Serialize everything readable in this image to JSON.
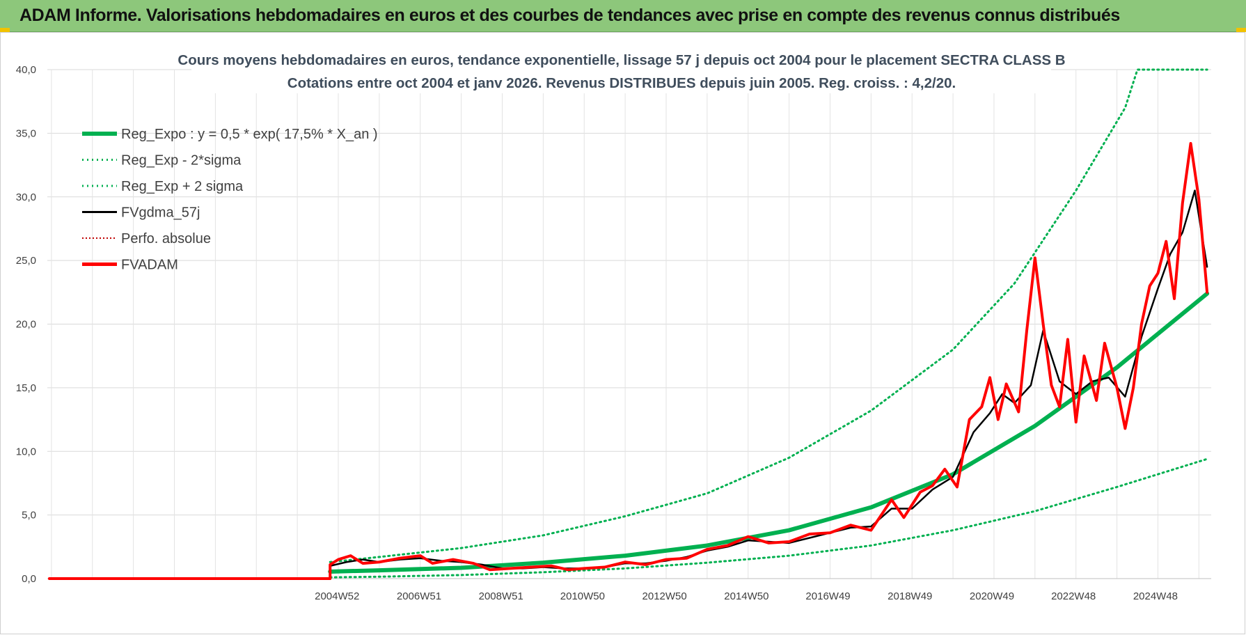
{
  "header": {
    "title": "ADAM Informe. Valorisations hebdomadaires en euros et des courbes de tendances avec prise en compte des revenus connus distribués"
  },
  "colors": {
    "header_bg": "#8dc77b",
    "reg_expo": "#00b050",
    "fvgdma": "#000000",
    "fvadam": "#ff0000",
    "perfo": "#c00000",
    "accent": "#f2c200"
  },
  "chart_data": {
    "type": "line",
    "title": [
      "Cours moyens hebdomadaires en euros, tendance exponentielle, lissage 57 j depuis oct 2004 pour le placement SECTRA CLASS B",
      "Cotations entre oct 2004 et janv 2026. Revenus DISTRIBUES depuis juin 2005. Reg. croiss. : 4,2/20."
    ],
    "ylim": [
      0,
      40
    ],
    "yticks": [
      "0,0",
      "5,0",
      "10,0",
      "15,0",
      "20,0",
      "25,0",
      "30,0",
      "35,0",
      "40,0"
    ],
    "xlabels": [
      {
        "label": "2004W52",
        "t": 2004.97
      },
      {
        "label": "2006W51",
        "t": 2006.97
      },
      {
        "label": "2008W51",
        "t": 2008.97
      },
      {
        "label": "2010W50",
        "t": 2010.96
      },
      {
        "label": "2012W50",
        "t": 2012.96
      },
      {
        "label": "2014W50",
        "t": 2014.96
      },
      {
        "label": "2016W49",
        "t": 2016.95
      },
      {
        "label": "2018W49",
        "t": 2018.95
      },
      {
        "label": "2020W49",
        "t": 2020.95
      },
      {
        "label": "2022W48",
        "t": 2022.94
      },
      {
        "label": "2024W48",
        "t": 2024.94
      }
    ],
    "xlim": [
      1997.9,
      2026.3
    ],
    "data_start": 2004.8,
    "legend": [
      {
        "name": "Reg_Expo : y = 0,5 * exp( 17,5% *  X_an )",
        "style": "thick",
        "color": "#00b050"
      },
      {
        "name": "Reg_Exp - 2*sigma",
        "style": "dotted",
        "color": "#00b050"
      },
      {
        "name": "Reg_Exp + 2 sigma",
        "style": "dotted",
        "color": "#00b050"
      },
      {
        "name": "FVgdma_57j",
        "style": "solid",
        "color": "#000000"
      },
      {
        "name": "Perfo. absolue",
        "style": "dotted",
        "color": "#c00000"
      },
      {
        "name": "FVADAM",
        "style": "thickred",
        "color": "#ff0000"
      }
    ],
    "series": [
      {
        "name": "Reg_Expo",
        "points": [
          [
            2004.8,
            0.55
          ],
          [
            2006,
            0.65
          ],
          [
            2008,
            0.85
          ],
          [
            2010,
            1.25
          ],
          [
            2012,
            1.8
          ],
          [
            2014,
            2.6
          ],
          [
            2016,
            3.8
          ],
          [
            2018,
            5.6
          ],
          [
            2020,
            8.2
          ],
          [
            2022,
            12.0
          ],
          [
            2024,
            16.6
          ],
          [
            2026.2,
            22.4
          ]
        ]
      },
      {
        "name": "Reg_Exp - 2*sigma",
        "points": [
          [
            2004.8,
            0.1
          ],
          [
            2006,
            0.15
          ],
          [
            2008,
            0.28
          ],
          [
            2010,
            0.5
          ],
          [
            2012,
            0.8
          ],
          [
            2014,
            1.25
          ],
          [
            2016,
            1.8
          ],
          [
            2018,
            2.6
          ],
          [
            2020,
            3.8
          ],
          [
            2022,
            5.3
          ],
          [
            2024,
            7.2
          ],
          [
            2026.2,
            9.4
          ]
        ]
      },
      {
        "name": "Reg_Exp + 2 sigma",
        "points": [
          [
            2004.8,
            1.3
          ],
          [
            2006,
            1.7
          ],
          [
            2008,
            2.4
          ],
          [
            2010,
            3.4
          ],
          [
            2012,
            4.9
          ],
          [
            2014,
            6.7
          ],
          [
            2016,
            9.5
          ],
          [
            2018,
            13.2
          ],
          [
            2020,
            18.0
          ],
          [
            2021.5,
            23.2
          ],
          [
            2023,
            30.5
          ],
          [
            2024.2,
            37.0
          ],
          [
            2024.5,
            40
          ],
          [
            2026.2,
            40
          ]
        ]
      },
      {
        "name": "FVgdma_57j",
        "points": [
          [
            2004.8,
            1.0
          ],
          [
            2005.2,
            1.3
          ],
          [
            2005.6,
            1.5
          ],
          [
            2006,
            1.3
          ],
          [
            2006.5,
            1.5
          ],
          [
            2007,
            1.6
          ],
          [
            2007.5,
            1.4
          ],
          [
            2008,
            1.3
          ],
          [
            2008.5,
            1.1
          ],
          [
            2009,
            0.8
          ],
          [
            2009.5,
            0.8
          ],
          [
            2010,
            0.9
          ],
          [
            2010.5,
            0.8
          ],
          [
            2011,
            0.8
          ],
          [
            2011.5,
            0.9
          ],
          [
            2012,
            1.2
          ],
          [
            2012.5,
            1.2
          ],
          [
            2013,
            1.4
          ],
          [
            2013.5,
            1.7
          ],
          [
            2014,
            2.2
          ],
          [
            2014.5,
            2.5
          ],
          [
            2015,
            3.0
          ],
          [
            2015.5,
            2.9
          ],
          [
            2016,
            2.8
          ],
          [
            2016.5,
            3.2
          ],
          [
            2017,
            3.6
          ],
          [
            2017.5,
            4.0
          ],
          [
            2018,
            4.1
          ],
          [
            2018.5,
            5.5
          ],
          [
            2019,
            5.5
          ],
          [
            2019.5,
            7.0
          ],
          [
            2020,
            8.0
          ],
          [
            2020.5,
            11.5
          ],
          [
            2020.9,
            13.0
          ],
          [
            2021.2,
            14.5
          ],
          [
            2021.5,
            13.8
          ],
          [
            2021.9,
            15.2
          ],
          [
            2022.2,
            19.5
          ],
          [
            2022.6,
            15.5
          ],
          [
            2023,
            14.5
          ],
          [
            2023.4,
            15.5
          ],
          [
            2023.8,
            15.8
          ],
          [
            2024.2,
            14.3
          ],
          [
            2024.6,
            19.0
          ],
          [
            2025,
            22.8
          ],
          [
            2025.3,
            25.5
          ],
          [
            2025.6,
            27.2
          ],
          [
            2025.9,
            30.5
          ],
          [
            2026.2,
            24.5
          ]
        ]
      },
      {
        "name": "FVADAM",
        "points": [
          [
            2004.8,
            1.1
          ],
          [
            2005.0,
            1.5
          ],
          [
            2005.3,
            1.8
          ],
          [
            2005.6,
            1.2
          ],
          [
            2006,
            1.3
          ],
          [
            2006.5,
            1.6
          ],
          [
            2007,
            1.8
          ],
          [
            2007.3,
            1.2
          ],
          [
            2007.8,
            1.5
          ],
          [
            2008.3,
            1.2
          ],
          [
            2008.7,
            0.7
          ],
          [
            2009.2,
            0.8
          ],
          [
            2009.7,
            0.9
          ],
          [
            2010.2,
            1.0
          ],
          [
            2010.6,
            0.7
          ],
          [
            2011,
            0.8
          ],
          [
            2011.5,
            0.9
          ],
          [
            2012,
            1.3
          ],
          [
            2012.5,
            1.1
          ],
          [
            2013,
            1.5
          ],
          [
            2013.5,
            1.6
          ],
          [
            2014,
            2.3
          ],
          [
            2014.5,
            2.6
          ],
          [
            2015,
            3.3
          ],
          [
            2015.5,
            2.8
          ],
          [
            2016,
            2.9
          ],
          [
            2016.5,
            3.5
          ],
          [
            2017,
            3.6
          ],
          [
            2017.5,
            4.2
          ],
          [
            2018,
            3.8
          ],
          [
            2018.5,
            6.2
          ],
          [
            2018.8,
            4.8
          ],
          [
            2019.2,
            6.8
          ],
          [
            2019.5,
            7.3
          ],
          [
            2019.8,
            8.6
          ],
          [
            2020.1,
            7.2
          ],
          [
            2020.4,
            12.5
          ],
          [
            2020.7,
            13.5
          ],
          [
            2020.9,
            15.8
          ],
          [
            2021.1,
            12.5
          ],
          [
            2021.3,
            15.3
          ],
          [
            2021.6,
            13.1
          ],
          [
            2021.8,
            19.5
          ],
          [
            2022.0,
            25.2
          ],
          [
            2022.2,
            20.0
          ],
          [
            2022.4,
            15.2
          ],
          [
            2022.6,
            13.5
          ],
          [
            2022.8,
            18.8
          ],
          [
            2023.0,
            12.3
          ],
          [
            2023.2,
            17.5
          ],
          [
            2023.5,
            14.0
          ],
          [
            2023.7,
            18.5
          ],
          [
            2024.0,
            15.0
          ],
          [
            2024.2,
            11.8
          ],
          [
            2024.4,
            15.0
          ],
          [
            2024.6,
            20.0
          ],
          [
            2024.8,
            23.0
          ],
          [
            2025.0,
            24.0
          ],
          [
            2025.2,
            26.5
          ],
          [
            2025.4,
            22.0
          ],
          [
            2025.6,
            29.5
          ],
          [
            2025.8,
            34.2
          ],
          [
            2026.0,
            29.8
          ],
          [
            2026.2,
            22.5
          ]
        ]
      }
    ]
  }
}
